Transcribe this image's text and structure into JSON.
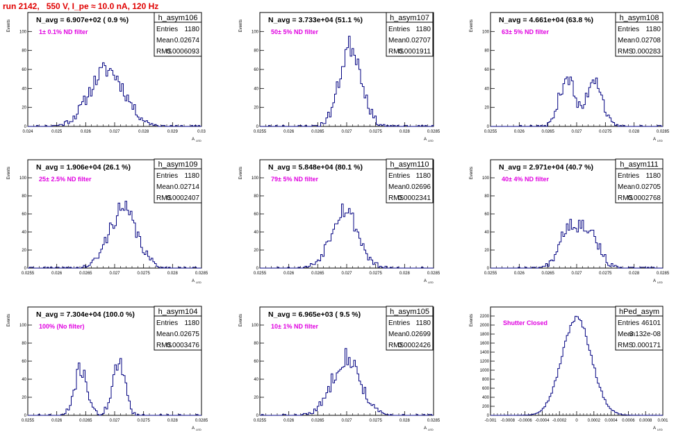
{
  "run_title": "run 2142,   550 V, I_pe ≈ 10.0 nA, 120 Hz",
  "axis_ylabel": "Events",
  "axis_xlabel": "A",
  "axis_xlabel_sub": "LED",
  "stats_labels": {
    "entries": "Entries",
    "mean": "Mean",
    "rms": "RMS"
  },
  "colors": {
    "title": "#e00000",
    "histogram": "#000080",
    "annotation": "#e000e0",
    "frame": "#000000"
  },
  "chart_data": [
    {
      "type": "histogram",
      "name": "h_asym106",
      "info": "N_avg = 6.907e+02 ( 0.9 %)",
      "note": "1± 0.1% ND filter",
      "stats": {
        "entries": "1180",
        "mean": "0.02674",
        "rms": "0.0006093"
      },
      "xlim": [
        0.024,
        0.03
      ],
      "ylim": [
        0,
        120
      ],
      "xticks": [
        "0.024",
        "0.025",
        "0.026",
        "0.027",
        "0.028",
        "0.029",
        "0.03"
      ],
      "yticks": [
        "0",
        "20",
        "40",
        "60",
        "80",
        "100"
      ],
      "shape": [
        {
          "mu": 0.02674,
          "sigma": 0.00061,
          "w": 1
        }
      ],
      "peak": 60,
      "seed": 11
    },
    {
      "type": "histogram",
      "name": "h_asym107",
      "info": "N_avg = 3.733e+04 (51.1 %)",
      "note": "50± 5% ND filter",
      "stats": {
        "entries": "1180",
        "mean": "0.02707",
        "rms": "0.0001911"
      },
      "xlim": [
        0.0255,
        0.0285
      ],
      "ylim": [
        0,
        120
      ],
      "xticks": [
        "0.0255",
        "0.026",
        "0.0265",
        "0.027",
        "0.0275",
        "0.028",
        "0.0285"
      ],
      "yticks": [
        "0",
        "20",
        "40",
        "60",
        "80",
        "100"
      ],
      "shape": [
        {
          "mu": 0.02707,
          "sigma": 0.00019,
          "w": 1
        }
      ],
      "peak": 85,
      "seed": 23
    },
    {
      "type": "histogram",
      "name": "h_asym108",
      "info": "N_avg = 4.661e+04 (63.8 %)",
      "note": "63± 5% ND filter",
      "stats": {
        "entries": "1180",
        "mean": "0.02708",
        "rms": "0.000283"
      },
      "xlim": [
        0.0255,
        0.0285
      ],
      "ylim": [
        0,
        120
      ],
      "xticks": [
        "0.0255",
        "0.026",
        "0.0265",
        "0.027",
        "0.0275",
        "0.028",
        "0.0285"
      ],
      "yticks": [
        "0",
        "20",
        "40",
        "60",
        "80",
        "100"
      ],
      "shape": [
        {
          "mu": 0.02683,
          "sigma": 0.00013,
          "w": 1
        },
        {
          "mu": 0.02731,
          "sigma": 0.00013,
          "w": 1
        }
      ],
      "peak": 53,
      "seed": 37
    },
    {
      "type": "histogram",
      "name": "h_asym109",
      "info": "N_avg = 1.906e+04 (26.1 %)",
      "note": "25± 2.5% ND filter",
      "stats": {
        "entries": "1180",
        "mean": "0.02714",
        "rms": "0.0002407"
      },
      "xlim": [
        0.0255,
        0.0285
      ],
      "ylim": [
        0,
        120
      ],
      "xticks": [
        "0.0255",
        "0.026",
        "0.0265",
        "0.027",
        "0.0275",
        "0.028",
        "0.0285"
      ],
      "yticks": [
        "0",
        "20",
        "40",
        "60",
        "80",
        "100"
      ],
      "shape": [
        {
          "mu": 0.02714,
          "sigma": 0.00024,
          "w": 1
        }
      ],
      "peak": 65,
      "seed": 41
    },
    {
      "type": "histogram",
      "name": "h_asym110",
      "info": "N_avg = 5.848e+04 (80.1 %)",
      "note": "79± 5% ND filter",
      "stats": {
        "entries": "1180",
        "mean": "0.02696",
        "rms": "0.0002341"
      },
      "xlim": [
        0.0255,
        0.0285
      ],
      "ylim": [
        0,
        120
      ],
      "xticks": [
        "0.0255",
        "0.026",
        "0.0265",
        "0.027",
        "0.0275",
        "0.028",
        "0.0285"
      ],
      "yticks": [
        "0",
        "20",
        "40",
        "60",
        "80",
        "100"
      ],
      "shape": [
        {
          "mu": 0.02696,
          "sigma": 0.00023,
          "w": 1
        }
      ],
      "peak": 66,
      "seed": 53
    },
    {
      "type": "histogram",
      "name": "h_asym111",
      "info": "N_avg = 2.971e+04 (40.7 %)",
      "note": "40± 4% ND filter",
      "stats": {
        "entries": "1180",
        "mean": "0.02705",
        "rms": "0.0002768"
      },
      "xlim": [
        0.0255,
        0.0285
      ],
      "ylim": [
        0,
        120
      ],
      "xticks": [
        "0.0255",
        "0.026",
        "0.0265",
        "0.027",
        "0.0275",
        "0.028",
        "0.0285"
      ],
      "yticks": [
        "0",
        "20",
        "40",
        "60",
        "80",
        "100"
      ],
      "shape": [
        {
          "mu": 0.02684,
          "sigma": 0.00016,
          "w": 1
        },
        {
          "mu": 0.0272,
          "sigma": 0.00018,
          "w": 1
        }
      ],
      "peak": 50,
      "seed": 67
    },
    {
      "type": "histogram",
      "name": "h_asym104",
      "info": "N_avg = 7.304e+04 (100.0 %)",
      "note": "100% (No filter)",
      "stats": {
        "entries": "1180",
        "mean": "0.02675",
        "rms": "0.0003476"
      },
      "xlim": [
        0.0255,
        0.0285
      ],
      "ylim": [
        0,
        120
      ],
      "xticks": [
        "0.0255",
        "0.026",
        "0.0265",
        "0.027",
        "0.0275",
        "0.028",
        "0.0285"
      ],
      "yticks": [
        "0",
        "20",
        "40",
        "60",
        "80",
        "100"
      ],
      "shape": [
        {
          "mu": 0.02642,
          "sigma": 0.00011,
          "w": 1
        },
        {
          "mu": 0.02707,
          "sigma": 0.00011,
          "w": 1.1
        }
      ],
      "peak": 57,
      "seed": 71
    },
    {
      "type": "histogram",
      "name": "h_asym105",
      "info": "N_avg = 6.965e+03 ( 9.5 %)",
      "note": "10± 1% ND filter",
      "stats": {
        "entries": "1180",
        "mean": "0.02699",
        "rms": "0.0002426"
      },
      "xlim": [
        0.0255,
        0.0285
      ],
      "ylim": [
        0,
        120
      ],
      "xticks": [
        "0.0255",
        "0.026",
        "0.0265",
        "0.027",
        "0.0275",
        "0.028",
        "0.0285"
      ],
      "yticks": [
        "0",
        "20",
        "40",
        "60",
        "80",
        "100"
      ],
      "shape": [
        {
          "mu": 0.02699,
          "sigma": 0.00024,
          "w": 1
        }
      ],
      "peak": 65,
      "seed": 83
    },
    {
      "type": "histogram",
      "name": "hPed_asym",
      "info": "",
      "note": "Shutter Closed",
      "stats": {
        "entries": "46101",
        "mean": "-3.132e-08",
        "rms": "0.000171"
      },
      "xlim": [
        -0.001,
        0.001
      ],
      "ylim": [
        0,
        2400
      ],
      "xticks": [
        "-0.001",
        "-0.0008",
        "-0.0006",
        "-0.0004",
        "-0.0002",
        "0",
        "0.0002",
        "0.0004",
        "0.0006",
        "0.0008",
        "0.001"
      ],
      "yticks": [
        "0",
        "200",
        "400",
        "600",
        "800",
        "1000",
        "1200",
        "1400",
        "1600",
        "1800",
        "2000",
        "2200"
      ],
      "shape": [
        {
          "mu": 0,
          "sigma": 0.000171,
          "w": 1
        }
      ],
      "peak": 2150,
      "seed": 97
    }
  ]
}
